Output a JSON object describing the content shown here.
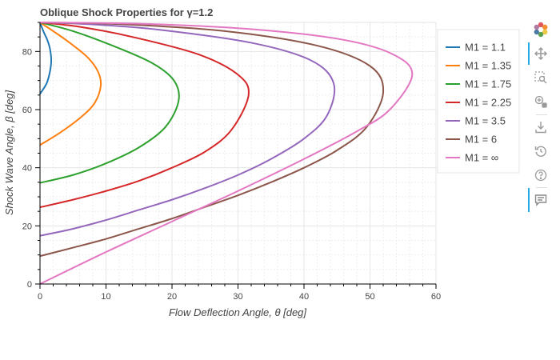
{
  "chart_data": {
    "type": "line",
    "title": "Oblique Shock Properties for γ=1.2",
    "xlabel": "Flow Deflection Angle, θ [deg]",
    "ylabel": "Shock Wave Angle, β [deg]",
    "xlim": [
      0,
      60
    ],
    "ylim": [
      0,
      90
    ],
    "x_ticks": [
      "0",
      "10",
      "20",
      "30",
      "40",
      "50",
      "60"
    ],
    "y_ticks": [
      "0",
      "20",
      "40",
      "60",
      "80"
    ],
    "grid": true,
    "legend_position": "right",
    "series": [
      {
        "name": "M1 = 1.1",
        "color": "#1f77b4",
        "max_deflection": 1.7,
        "points": [
          [
            0,
            65.4
          ],
          [
            1.0,
            69.0
          ],
          [
            1.5,
            73.0
          ],
          [
            1.7,
            77.0
          ],
          [
            1.5,
            81.0
          ],
          [
            1.1,
            84.0
          ],
          [
            0.5,
            87.0
          ],
          [
            0,
            90
          ]
        ]
      },
      {
        "name": "M1 = 1.35",
        "color": "#ff7f0e",
        "max_deflection": 9.2,
        "points": [
          [
            0,
            47.8
          ],
          [
            3.0,
            52.0
          ],
          [
            6.0,
            57.0
          ],
          [
            8.2,
            62.0
          ],
          [
            9.2,
            68.0
          ],
          [
            8.8,
            73.0
          ],
          [
            7.2,
            78.0
          ],
          [
            4.5,
            83.0
          ],
          [
            2.0,
            87.0
          ],
          [
            0,
            90
          ]
        ]
      },
      {
        "name": "M1 = 1.75",
        "color": "#2ca02c",
        "max_deflection": 21.0,
        "points": [
          [
            0,
            34.8
          ],
          [
            5.0,
            37.5
          ],
          [
            10.0,
            41.5
          ],
          [
            15.0,
            47.0
          ],
          [
            19.0,
            54.0
          ],
          [
            21.0,
            63.0
          ],
          [
            20.3,
            70.0
          ],
          [
            17.0,
            76.0
          ],
          [
            11.0,
            82.0
          ],
          [
            5.0,
            87.0
          ],
          [
            0,
            90
          ]
        ]
      },
      {
        "name": "M1 = 2.25",
        "color": "#d62728",
        "max_deflection": 31.6,
        "points": [
          [
            0,
            26.4
          ],
          [
            5.0,
            29.0
          ],
          [
            10.0,
            32.0
          ],
          [
            15.0,
            35.5
          ],
          [
            20.0,
            40.0
          ],
          [
            25.0,
            45.5
          ],
          [
            29.0,
            53.0
          ],
          [
            31.6,
            65.0
          ],
          [
            30.0,
            72.0
          ],
          [
            24.0,
            79.0
          ],
          [
            14.0,
            85.0
          ],
          [
            6.0,
            88.5
          ],
          [
            0,
            90
          ]
        ]
      },
      {
        "name": "M1 = 3.5",
        "color": "#9467bd",
        "max_deflection": 44.5,
        "points": [
          [
            0,
            16.6
          ],
          [
            5.0,
            19.0
          ],
          [
            10.0,
            22.0
          ],
          [
            15.0,
            25.5
          ],
          [
            20.0,
            29.0
          ],
          [
            25.0,
            33.0
          ],
          [
            30.0,
            37.5
          ],
          [
            35.0,
            43.0
          ],
          [
            40.0,
            50.0
          ],
          [
            43.5,
            58.0
          ],
          [
            44.5,
            69.0
          ],
          [
            41.0,
            77.0
          ],
          [
            32.0,
            83.0
          ],
          [
            18.0,
            87.5
          ],
          [
            8.0,
            89.3
          ],
          [
            0,
            90
          ]
        ]
      },
      {
        "name": "M1 = 6",
        "color": "#8c564b",
        "max_deflection": 52.0,
        "points": [
          [
            0,
            9.6
          ],
          [
            5.0,
            12.5
          ],
          [
            10.0,
            15.5
          ],
          [
            15.0,
            19.0
          ],
          [
            20.0,
            22.5
          ],
          [
            25.0,
            26.5
          ],
          [
            30.0,
            30.5
          ],
          [
            35.0,
            35.0
          ],
          [
            40.0,
            40.0
          ],
          [
            45.0,
            46.0
          ],
          [
            49.5,
            54.0
          ],
          [
            52.0,
            66.0
          ],
          [
            50.0,
            75.0
          ],
          [
            42.0,
            82.0
          ],
          [
            28.0,
            87.0
          ],
          [
            12.0,
            89.4
          ],
          [
            0,
            90
          ]
        ]
      },
      {
        "name": "M1 = ∞",
        "color": "#e377c2",
        "max_deflection": 56.4,
        "points": [
          [
            0,
            0.0
          ],
          [
            10.0,
            11.0
          ],
          [
            20.0,
            21.5
          ],
          [
            30.0,
            32.0
          ],
          [
            40.0,
            43.0
          ],
          [
            48.0,
            52.5
          ],
          [
            53.0,
            60.0
          ],
          [
            56.4,
            72.0
          ],
          [
            53.5,
            79.0
          ],
          [
            46.0,
            84.0
          ],
          [
            33.0,
            87.5
          ],
          [
            16.0,
            89.5
          ],
          [
            0,
            90
          ]
        ]
      }
    ]
  },
  "toolbar": {
    "icons": [
      "bokeh-logo-icon",
      "pan-icon",
      "box-zoom-icon",
      "wheel-zoom-icon",
      "save-icon",
      "reset-icon",
      "help-icon",
      "hover-icon"
    ]
  }
}
